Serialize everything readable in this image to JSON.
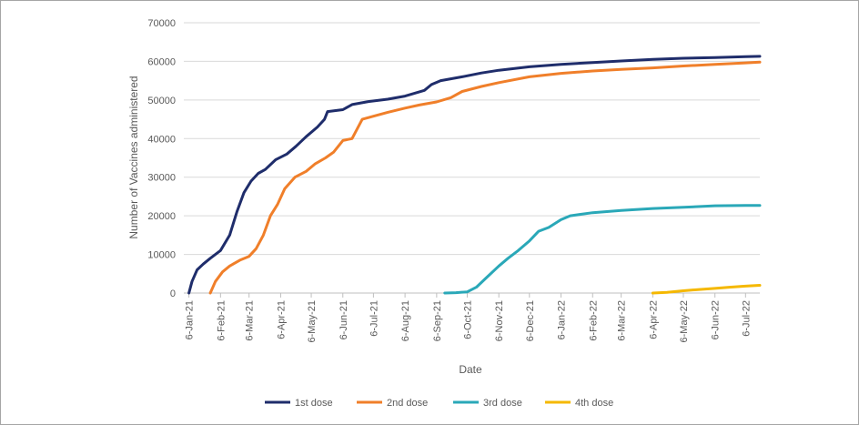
{
  "chart_data": {
    "type": "line",
    "title": "",
    "xlabel": "Date",
    "ylabel": "Number of Vaccines administered",
    "ylim": [
      0,
      70000
    ],
    "yticks": [
      0,
      10000,
      20000,
      30000,
      40000,
      50000,
      60000,
      70000
    ],
    "yticks_labels": [
      "0",
      "10000",
      "20000",
      "30000",
      "40000",
      "50000",
      "60000",
      "70000"
    ],
    "xlim": [
      "2021-01-01",
      "2022-07-20"
    ],
    "xticks": [
      "2021-01-06",
      "2021-02-06",
      "2021-03-06",
      "2021-04-06",
      "2021-05-06",
      "2021-06-06",
      "2021-07-06",
      "2021-08-06",
      "2021-09-06",
      "2021-10-06",
      "2021-11-06",
      "2021-12-06",
      "2022-01-06",
      "2022-02-06",
      "2022-03-06",
      "2022-04-06",
      "2022-05-06",
      "2022-06-06",
      "2022-07-06"
    ],
    "xticks_labels": [
      "6-Jan-21",
      "6-Feb-21",
      "6-Mar-21",
      "6-Apr-21",
      "6-May-21",
      "6-Jun-21",
      "6-Jul-21",
      "6-Aug-21",
      "6-Sep-21",
      "6-Oct-21",
      "6-Nov-21",
      "6-Dec-21",
      "6-Jan-22",
      "6-Feb-22",
      "6-Mar-22",
      "6-Apr-22",
      "6-May-22",
      "6-Jun-22",
      "6-Jul-22"
    ],
    "grid": true,
    "legend": "bottom",
    "series": [
      {
        "name": "1st dose",
        "color": "#1f2d6b",
        "points": [
          [
            "2021-01-06",
            0
          ],
          [
            "2021-01-09",
            3000
          ],
          [
            "2021-01-14",
            6000
          ],
          [
            "2021-01-20",
            7500
          ],
          [
            "2021-01-27",
            9000
          ],
          [
            "2021-02-06",
            11000
          ],
          [
            "2021-02-15",
            15000
          ],
          [
            "2021-02-22",
            21000
          ],
          [
            "2021-03-01",
            26000
          ],
          [
            "2021-03-08",
            29000
          ],
          [
            "2021-03-15",
            31000
          ],
          [
            "2021-03-22",
            32000
          ],
          [
            "2021-04-01",
            34500
          ],
          [
            "2021-04-12",
            36000
          ],
          [
            "2021-04-21",
            38000
          ],
          [
            "2021-05-01",
            40500
          ],
          [
            "2021-05-12",
            43000
          ],
          [
            "2021-05-19",
            45000
          ],
          [
            "2021-05-22",
            47000
          ],
          [
            "2021-06-06",
            47500
          ],
          [
            "2021-06-15",
            48800
          ],
          [
            "2021-07-01",
            49600
          ],
          [
            "2021-07-20",
            50200
          ],
          [
            "2021-08-06",
            51000
          ],
          [
            "2021-08-25",
            52500
          ],
          [
            "2021-09-01",
            54000
          ],
          [
            "2021-09-10",
            55000
          ],
          [
            "2021-10-01",
            56000
          ],
          [
            "2021-10-20",
            57000
          ],
          [
            "2021-11-06",
            57700
          ],
          [
            "2021-12-06",
            58600
          ],
          [
            "2022-01-06",
            59200
          ],
          [
            "2022-02-06",
            59700
          ],
          [
            "2022-03-06",
            60100
          ],
          [
            "2022-04-06",
            60500
          ],
          [
            "2022-05-06",
            60800
          ],
          [
            "2022-06-06",
            61000
          ],
          [
            "2022-07-06",
            61200
          ],
          [
            "2022-07-20",
            61300
          ]
        ]
      },
      {
        "name": "2nd dose",
        "color": "#f07f2a",
        "points": [
          [
            "2021-01-27",
            0
          ],
          [
            "2021-02-01",
            3000
          ],
          [
            "2021-02-08",
            5500
          ],
          [
            "2021-02-15",
            7000
          ],
          [
            "2021-02-25",
            8500
          ],
          [
            "2021-03-06",
            9500
          ],
          [
            "2021-03-13",
            11500
          ],
          [
            "2021-03-20",
            15000
          ],
          [
            "2021-03-27",
            20000
          ],
          [
            "2021-04-03",
            23000
          ],
          [
            "2021-04-10",
            27000
          ],
          [
            "2021-04-20",
            30000
          ],
          [
            "2021-05-01",
            31500
          ],
          [
            "2021-05-10",
            33500
          ],
          [
            "2021-05-20",
            35000
          ],
          [
            "2021-05-28",
            36500
          ],
          [
            "2021-06-06",
            39500
          ],
          [
            "2021-06-15",
            40000
          ],
          [
            "2021-06-25",
            45000
          ],
          [
            "2021-07-06",
            45800
          ],
          [
            "2021-07-20",
            46800
          ],
          [
            "2021-08-06",
            47900
          ],
          [
            "2021-08-20",
            48700
          ],
          [
            "2021-09-06",
            49500
          ],
          [
            "2021-09-20",
            50600
          ],
          [
            "2021-10-01",
            52200
          ],
          [
            "2021-10-20",
            53500
          ],
          [
            "2021-11-06",
            54500
          ],
          [
            "2021-12-06",
            56000
          ],
          [
            "2022-01-06",
            56900
          ],
          [
            "2022-02-06",
            57500
          ],
          [
            "2022-03-06",
            57900
          ],
          [
            "2022-04-06",
            58300
          ],
          [
            "2022-05-06",
            58800
          ],
          [
            "2022-06-06",
            59200
          ],
          [
            "2022-07-06",
            59600
          ],
          [
            "2022-07-20",
            59800
          ]
        ]
      },
      {
        "name": "3rd dose",
        "color": "#2aa8b8",
        "points": [
          [
            "2021-09-14",
            0
          ],
          [
            "2021-09-25",
            100
          ],
          [
            "2021-10-06",
            300
          ],
          [
            "2021-10-15",
            1500
          ],
          [
            "2021-10-25",
            4000
          ],
          [
            "2021-11-06",
            7000
          ],
          [
            "2021-11-15",
            9000
          ],
          [
            "2021-11-25",
            11000
          ],
          [
            "2021-12-06",
            13500
          ],
          [
            "2021-12-15",
            16000
          ],
          [
            "2021-12-25",
            17000
          ],
          [
            "2022-01-06",
            19000
          ],
          [
            "2022-01-15",
            20000
          ],
          [
            "2022-02-06",
            20800
          ],
          [
            "2022-03-06",
            21400
          ],
          [
            "2022-04-06",
            21900
          ],
          [
            "2022-05-06",
            22200
          ],
          [
            "2022-06-06",
            22600
          ],
          [
            "2022-07-06",
            22700
          ],
          [
            "2022-07-20",
            22700
          ]
        ]
      },
      {
        "name": "4th dose",
        "color": "#f5b800",
        "points": [
          [
            "2022-04-06",
            0
          ],
          [
            "2022-04-20",
            200
          ],
          [
            "2022-05-06",
            600
          ],
          [
            "2022-05-20",
            900
          ],
          [
            "2022-06-06",
            1200
          ],
          [
            "2022-06-20",
            1500
          ],
          [
            "2022-07-06",
            1800
          ],
          [
            "2022-07-20",
            2000
          ]
        ]
      }
    ]
  }
}
